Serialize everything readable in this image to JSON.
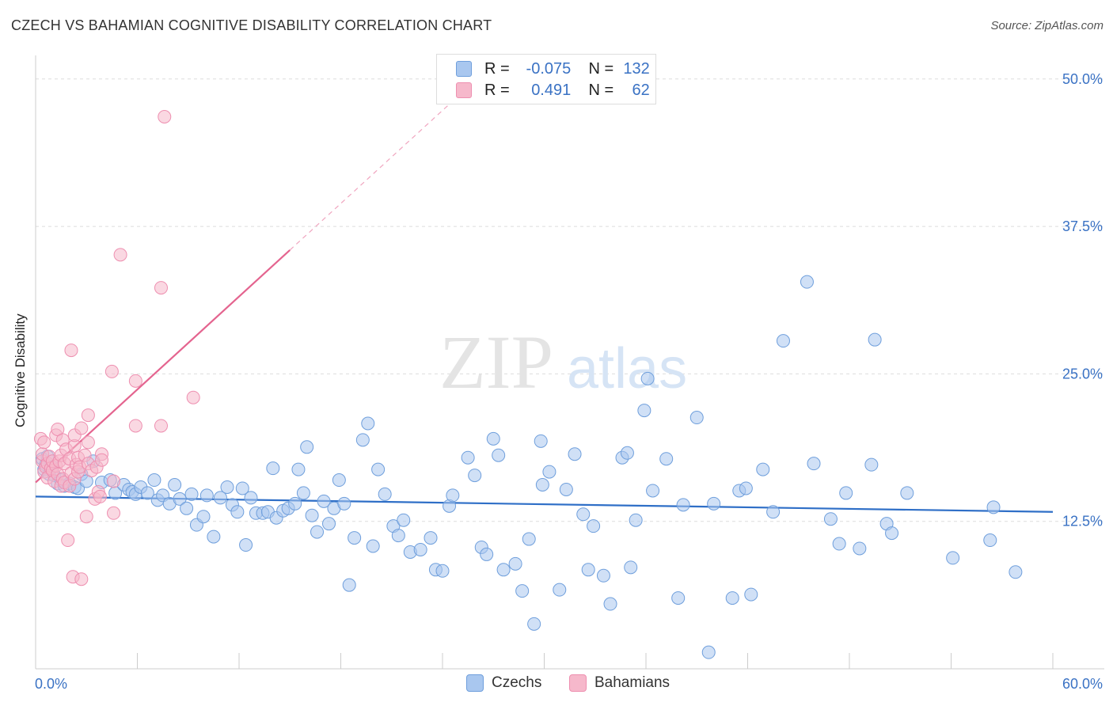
{
  "header": {
    "title": "CZECH VS BAHAMIAN COGNITIVE DISABILITY CORRELATION CHART",
    "source": "Source: ZipAtlas.com"
  },
  "watermark": {
    "zip": "ZIP",
    "atlas": "atlas"
  },
  "legend": {
    "czech": {
      "r_label": "R =",
      "r_value": "-0.075",
      "n_label": "N =",
      "n_value": "132"
    },
    "bahamian": {
      "r_label": "R =",
      "r_value": " 0.491",
      "n_label": "N =",
      "n_value": " 62"
    }
  },
  "colors": {
    "czech_fill": "#a9c7ef",
    "czech_stroke": "#6f9fdc",
    "czech_line": "#2f6fc7",
    "bahamian_fill": "#f6b8cb",
    "bahamian_stroke": "#ee8fb0",
    "bahamian_line": "#e4648f",
    "tick_label": "#3a72c4",
    "grid": "#dddddd"
  },
  "chart_data": {
    "type": "scatter",
    "title": "CZECH VS BAHAMIAN COGNITIVE DISABILITY CORRELATION CHART",
    "xlabel": "",
    "ylabel": "Cognitive Disability",
    "xlim": [
      0,
      60
    ],
    "ylim": [
      0,
      52
    ],
    "x_tick_labels": [
      {
        "value": 0,
        "label": "0.0%"
      },
      {
        "value": 60,
        "label": "60.0%"
      }
    ],
    "y_tick_labels": [
      {
        "value": 12.5,
        "label": "12.5%"
      },
      {
        "value": 25,
        "label": "25.0%"
      },
      {
        "value": 37.5,
        "label": "37.5%"
      },
      {
        "value": 50,
        "label": "50.0%"
      }
    ],
    "grid": true,
    "legend_position": "top-center",
    "series": [
      {
        "name": "Czechs",
        "R": -0.075,
        "N": 132,
        "trend": {
          "x": [
            0,
            60
          ],
          "y": [
            14.6,
            13.3
          ]
        },
        "points": [
          [
            0.4,
            17.8
          ],
          [
            0.5,
            16.9
          ],
          [
            0.6,
            17.3
          ],
          [
            0.7,
            18.0
          ],
          [
            0.8,
            16.5
          ],
          [
            1.0,
            17.1
          ],
          [
            1.1,
            16.4
          ],
          [
            1.3,
            15.7
          ],
          [
            1.5,
            16.0
          ],
          [
            1.7,
            15.5
          ],
          [
            2.0,
            15.7
          ],
          [
            2.3,
            15.4
          ],
          [
            2.5,
            15.3
          ],
          [
            2.7,
            16.5
          ],
          [
            3.0,
            15.9
          ],
          [
            3.4,
            17.6
          ],
          [
            3.9,
            15.8
          ],
          [
            4.4,
            16.0
          ],
          [
            4.7,
            14.9
          ],
          [
            5.2,
            15.6
          ],
          [
            5.5,
            15.2
          ],
          [
            5.7,
            15.0
          ],
          [
            5.9,
            14.8
          ],
          [
            6.2,
            15.4
          ],
          [
            6.6,
            14.9
          ],
          [
            7.0,
            16.0
          ],
          [
            7.2,
            14.3
          ],
          [
            7.5,
            14.7
          ],
          [
            7.9,
            14.0
          ],
          [
            8.2,
            15.6
          ],
          [
            8.5,
            14.4
          ],
          [
            8.9,
            13.6
          ],
          [
            9.2,
            14.8
          ],
          [
            9.5,
            12.2
          ],
          [
            9.9,
            12.9
          ],
          [
            10.1,
            14.7
          ],
          [
            10.5,
            11.2
          ],
          [
            10.9,
            14.5
          ],
          [
            11.3,
            15.4
          ],
          [
            11.6,
            13.9
          ],
          [
            11.9,
            13.3
          ],
          [
            12.2,
            15.3
          ],
          [
            12.4,
            10.5
          ],
          [
            12.7,
            14.5
          ],
          [
            13.0,
            13.2
          ],
          [
            13.4,
            13.2
          ],
          [
            13.7,
            13.3
          ],
          [
            14.0,
            17.0
          ],
          [
            14.2,
            12.8
          ],
          [
            14.6,
            13.4
          ],
          [
            14.9,
            13.6
          ],
          [
            15.3,
            14.0
          ],
          [
            15.5,
            16.9
          ],
          [
            15.8,
            14.9
          ],
          [
            16.0,
            18.8
          ],
          [
            16.3,
            13.0
          ],
          [
            16.6,
            11.6
          ],
          [
            17.0,
            14.2
          ],
          [
            17.3,
            12.3
          ],
          [
            17.6,
            13.6
          ],
          [
            17.9,
            16.0
          ],
          [
            18.2,
            14.0
          ],
          [
            18.5,
            7.1
          ],
          [
            18.8,
            11.1
          ],
          [
            19.3,
            19.4
          ],
          [
            19.6,
            20.8
          ],
          [
            19.9,
            10.4
          ],
          [
            20.2,
            16.9
          ],
          [
            20.6,
            14.8
          ],
          [
            21.1,
            12.1
          ],
          [
            21.4,
            11.3
          ],
          [
            21.7,
            12.6
          ],
          [
            22.1,
            9.9
          ],
          [
            22.7,
            10.1
          ],
          [
            23.3,
            11.1
          ],
          [
            23.6,
            8.4
          ],
          [
            24.0,
            8.3
          ],
          [
            24.4,
            13.8
          ],
          [
            24.6,
            14.7
          ],
          [
            25.5,
            17.9
          ],
          [
            25.9,
            16.4
          ],
          [
            26.3,
            10.3
          ],
          [
            26.6,
            9.7
          ],
          [
            27.0,
            19.5
          ],
          [
            27.3,
            18.1
          ],
          [
            27.6,
            8.4
          ],
          [
            28.3,
            8.9
          ],
          [
            28.7,
            6.6
          ],
          [
            29.1,
            11.0
          ],
          [
            29.4,
            3.8
          ],
          [
            29.8,
            19.3
          ],
          [
            29.9,
            15.6
          ],
          [
            30.3,
            16.7
          ],
          [
            30.9,
            6.7
          ],
          [
            31.3,
            15.2
          ],
          [
            31.8,
            18.2
          ],
          [
            32.3,
            13.1
          ],
          [
            32.6,
            8.4
          ],
          [
            32.9,
            12.1
          ],
          [
            33.5,
            7.9
          ],
          [
            33.9,
            5.5
          ],
          [
            34.6,
            17.9
          ],
          [
            34.9,
            18.3
          ],
          [
            35.1,
            8.6
          ],
          [
            35.4,
            12.6
          ],
          [
            35.9,
            21.9
          ],
          [
            36.1,
            24.6
          ],
          [
            36.4,
            15.1
          ],
          [
            37.2,
            17.8
          ],
          [
            37.9,
            6.0
          ],
          [
            38.2,
            13.9
          ],
          [
            39.0,
            21.3
          ],
          [
            39.7,
            1.4
          ],
          [
            40.0,
            14.0
          ],
          [
            41.1,
            6.0
          ],
          [
            41.5,
            15.1
          ],
          [
            41.9,
            15.3
          ],
          [
            42.2,
            6.3
          ],
          [
            42.9,
            16.9
          ],
          [
            43.5,
            13.3
          ],
          [
            44.1,
            27.8
          ],
          [
            45.5,
            32.8
          ],
          [
            45.9,
            17.4
          ],
          [
            46.9,
            12.7
          ],
          [
            47.4,
            10.6
          ],
          [
            47.8,
            14.9
          ],
          [
            48.6,
            10.2
          ],
          [
            49.3,
            17.3
          ],
          [
            49.5,
            27.9
          ],
          [
            50.2,
            12.3
          ],
          [
            50.5,
            11.5
          ],
          [
            51.4,
            14.9
          ],
          [
            54.1,
            9.4
          ],
          [
            56.3,
            10.9
          ],
          [
            56.5,
            13.7
          ],
          [
            57.8,
            8.2
          ]
        ]
      },
      {
        "name": "Bahamians",
        "R": 0.491,
        "N": 62,
        "trend": {
          "x": [
            0,
            15
          ],
          "y": [
            15.8,
            35.5
          ],
          "dashed_x": [
            15,
            35
          ],
          "dashed_y": [
            35.5,
            61.8
          ]
        },
        "points": [
          [
            0.3,
            19.5
          ],
          [
            0.4,
            17.6
          ],
          [
            0.4,
            18.2
          ],
          [
            0.5,
            16.7
          ],
          [
            0.5,
            19.2
          ],
          [
            0.6,
            17.1
          ],
          [
            0.7,
            16.2
          ],
          [
            0.7,
            17.4
          ],
          [
            0.8,
            18.0
          ],
          [
            0.9,
            17.0
          ],
          [
            1.0,
            16.8
          ],
          [
            1.0,
            17.6
          ],
          [
            1.1,
            15.9
          ],
          [
            1.2,
            17.2
          ],
          [
            1.2,
            19.8
          ],
          [
            1.3,
            16.5
          ],
          [
            1.3,
            20.3
          ],
          [
            1.4,
            17.6
          ],
          [
            1.5,
            15.5
          ],
          [
            1.5,
            18.1
          ],
          [
            1.6,
            16.1
          ],
          [
            1.6,
            19.4
          ],
          [
            1.7,
            15.8
          ],
          [
            1.7,
            17.4
          ],
          [
            1.8,
            18.6
          ],
          [
            1.9,
            10.9
          ],
          [
            2.0,
            15.5
          ],
          [
            2.0,
            17.8
          ],
          [
            2.1,
            16.6
          ],
          [
            2.1,
            27.0
          ],
          [
            2.2,
            7.8
          ],
          [
            2.3,
            16.1
          ],
          [
            2.3,
            18.9
          ],
          [
            2.3,
            19.8
          ],
          [
            2.4,
            17.3
          ],
          [
            2.5,
            16.7
          ],
          [
            2.5,
            17.9
          ],
          [
            2.6,
            17.1
          ],
          [
            2.7,
            7.6
          ],
          [
            2.7,
            20.4
          ],
          [
            2.9,
            18.1
          ],
          [
            3.0,
            12.9
          ],
          [
            3.1,
            17.4
          ],
          [
            3.1,
            19.2
          ],
          [
            3.1,
            21.5
          ],
          [
            3.3,
            16.8
          ],
          [
            3.5,
            14.4
          ],
          [
            3.6,
            17.1
          ],
          [
            3.7,
            15.0
          ],
          [
            3.8,
            14.6
          ],
          [
            3.9,
            18.2
          ],
          [
            3.9,
            17.7
          ],
          [
            4.5,
            25.2
          ],
          [
            4.6,
            15.9
          ],
          [
            4.6,
            13.2
          ],
          [
            5.0,
            35.1
          ],
          [
            5.9,
            24.4
          ],
          [
            5.9,
            20.6
          ],
          [
            7.4,
            20.6
          ],
          [
            7.4,
            32.3
          ],
          [
            7.6,
            46.8
          ],
          [
            9.3,
            23.0
          ]
        ]
      }
    ]
  },
  "bottom_legend": {
    "czech_label": "Czechs",
    "bahamian_label": "Bahamians"
  }
}
